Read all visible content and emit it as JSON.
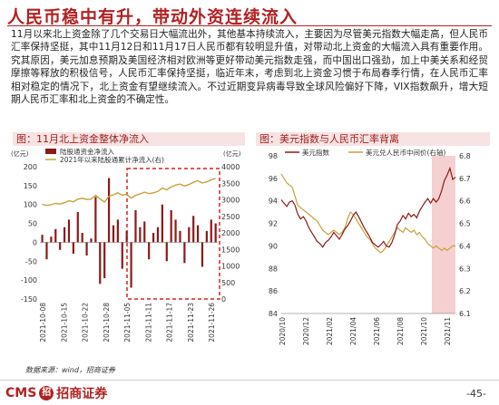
{
  "page": {
    "title": "人民币稳中有升，带动外资连续流入",
    "body": "11月以来北上资金除了几个交易日大幅流出外，其他基本持续流入，主要因为尽管美元指数大幅走高，但人民币汇率保持坚挺，其中11月12日和11月17日人民币都有较明显升值，对带动北上资金的大幅流入具有重要作用。究其原因，美元加息预期及美国经济相对欧洲等更好带动美元指数走强，而中国出口强劲，加上中美关系和经贸摩擦等释放的积极信号，人民币汇率保持坚挺，临近年末，考虑到北上资金习惯于布局春季行情，在人民币汇率相对稳定的情况下，北上资金有望继续流入。不过近期变异病毒导致全球风险偏好下降，VIX指数飙升，增大短期人民币汇率和北上资金的不确定性。",
    "source": "数据来源：wind，招商证券",
    "logo_text": "CMS",
    "logo_mark": "招",
    "logo_cn": "招商证券",
    "page_number": "-45-"
  },
  "colors": {
    "accent": "#b22222",
    "bar": "#8b1a1a",
    "gold": "#c9a03a",
    "highlight": "#f0bcbc"
  },
  "chart_data": [
    {
      "type": "bar",
      "title": "图：11月北上资金整体净流入",
      "ylabel_left": "(亿元)",
      "ylabel_right": "(亿元)",
      "legend": [
        {
          "name": "陆股通资金净流入",
          "kind": "bar"
        },
        {
          "name": "2021年以来陆股通累计净流入(右)",
          "kind": "line"
        }
      ],
      "ylim_left": [
        -150,
        200
      ],
      "yticks_left": [
        200,
        150,
        100,
        50,
        0,
        -50,
        -100,
        -150
      ],
      "ylim_right": [
        0,
        4000
      ],
      "yticks_right": [
        4000,
        3500,
        3000,
        2500,
        2000,
        1500,
        1000,
        500,
        0
      ],
      "xticks": [
        "2021-10-08",
        "2021-10-15",
        "2021-10-22",
        "2021-10-28",
        "2021-11-05",
        "2021-11-11",
        "2021-11-17",
        "2021-11-23",
        "2021-11-26"
      ],
      "highlight_range": [
        "2021-11-01",
        "2021-11-26"
      ],
      "series": [
        {
          "name": "陆股通资金净流入",
          "values": [
            20,
            -45,
            15,
            35,
            -20,
            40,
            60,
            -30,
            80,
            25,
            -35,
            10,
            120,
            -110,
            -95,
            170,
            45,
            60,
            -70,
            30,
            -120,
            85,
            40,
            55,
            -45,
            25,
            40,
            100,
            -50,
            85,
            60,
            30,
            -55,
            40,
            70,
            45,
            -65,
            30,
            60,
            50
          ]
        },
        {
          "name": "2021年以来陆股通累计净流入(右)",
          "values": [
            2860,
            2830,
            2850,
            2890,
            2870,
            2910,
            2970,
            2940,
            3020,
            3045,
            3010,
            3020,
            3140,
            3030,
            2935,
            3105,
            3150,
            3210,
            3140,
            3170,
            3050,
            3135,
            3175,
            3230,
            3185,
            3210,
            3250,
            3350,
            3300,
            3385,
            3445,
            3475,
            3420,
            3460,
            3530,
            3575,
            3510,
            3540,
            3600,
            3650
          ]
        }
      ]
    },
    {
      "type": "line",
      "title": "图：美元指数与人民币汇率背离",
      "legend": [
        {
          "name": "美元指数",
          "kind": "line"
        },
        {
          "name": "美元兑人民币中间价(右轴)",
          "kind": "line"
        }
      ],
      "ylim_left": [
        84,
        98
      ],
      "yticks_left": [
        98,
        96,
        94,
        92,
        90,
        88,
        86,
        84
      ],
      "ylim_right": [
        6.1,
        6.8
      ],
      "yticks_right": [
        6.8,
        6.7,
        6.6,
        6.5,
        6.4,
        6.3,
        6.2,
        6.1
      ],
      "xticks": [
        "2020/10",
        "2020/12",
        "2021/02",
        "2021/04",
        "2021/06",
        "2021/08",
        "2021/10",
        "2021/11"
      ],
      "highlight_range": [
        "2021/10",
        "2021/11+"
      ],
      "series": [
        {
          "name": "美元指数",
          "values": [
            94.1,
            93.8,
            93.5,
            93.9,
            94.0,
            93.6,
            92.8,
            92.4,
            92.6,
            92.2,
            91.6,
            91.2,
            90.8,
            90.4,
            90.2,
            89.9,
            90.3,
            90.5,
            90.8,
            91.2,
            90.9,
            90.6,
            91.0,
            91.5,
            91.8,
            92.2,
            92.7,
            93.0,
            92.6,
            92.1,
            91.6,
            91.2,
            90.8,
            90.3,
            90.1,
            89.9,
            90.1,
            90.4,
            90.0,
            89.9,
            90.3,
            91.0,
            91.9,
            92.2,
            92.7,
            92.4,
            92.9,
            92.6,
            92.8,
            92.5,
            93.1,
            93.5,
            93.9,
            94.2,
            93.8,
            94.2,
            93.9,
            94.2,
            94.9,
            95.8,
            96.3,
            96.9,
            95.9,
            96.1
          ]
        },
        {
          "name": "美元兑人民币中间价(右轴)",
          "values": [
            6.72,
            6.7,
            6.68,
            6.67,
            6.66,
            6.62,
            6.58,
            6.57,
            6.56,
            6.55,
            6.54,
            6.53,
            6.52,
            6.51,
            6.49,
            6.47,
            6.46,
            6.45,
            6.46,
            6.47,
            6.46,
            6.45,
            6.46,
            6.48,
            6.52,
            6.55,
            6.54,
            6.52,
            6.5,
            6.48,
            6.46,
            6.44,
            6.43,
            6.41,
            6.39,
            6.38,
            6.37,
            6.38,
            6.4,
            6.42,
            6.44,
            6.46,
            6.48,
            6.47,
            6.46,
            6.48,
            6.47,
            6.46,
            6.47,
            6.45,
            6.46,
            6.44,
            6.43,
            6.41,
            6.4,
            6.39,
            6.4,
            6.39,
            6.38,
            6.39,
            6.38,
            6.39,
            6.4,
            6.4
          ]
        }
      ]
    }
  ]
}
